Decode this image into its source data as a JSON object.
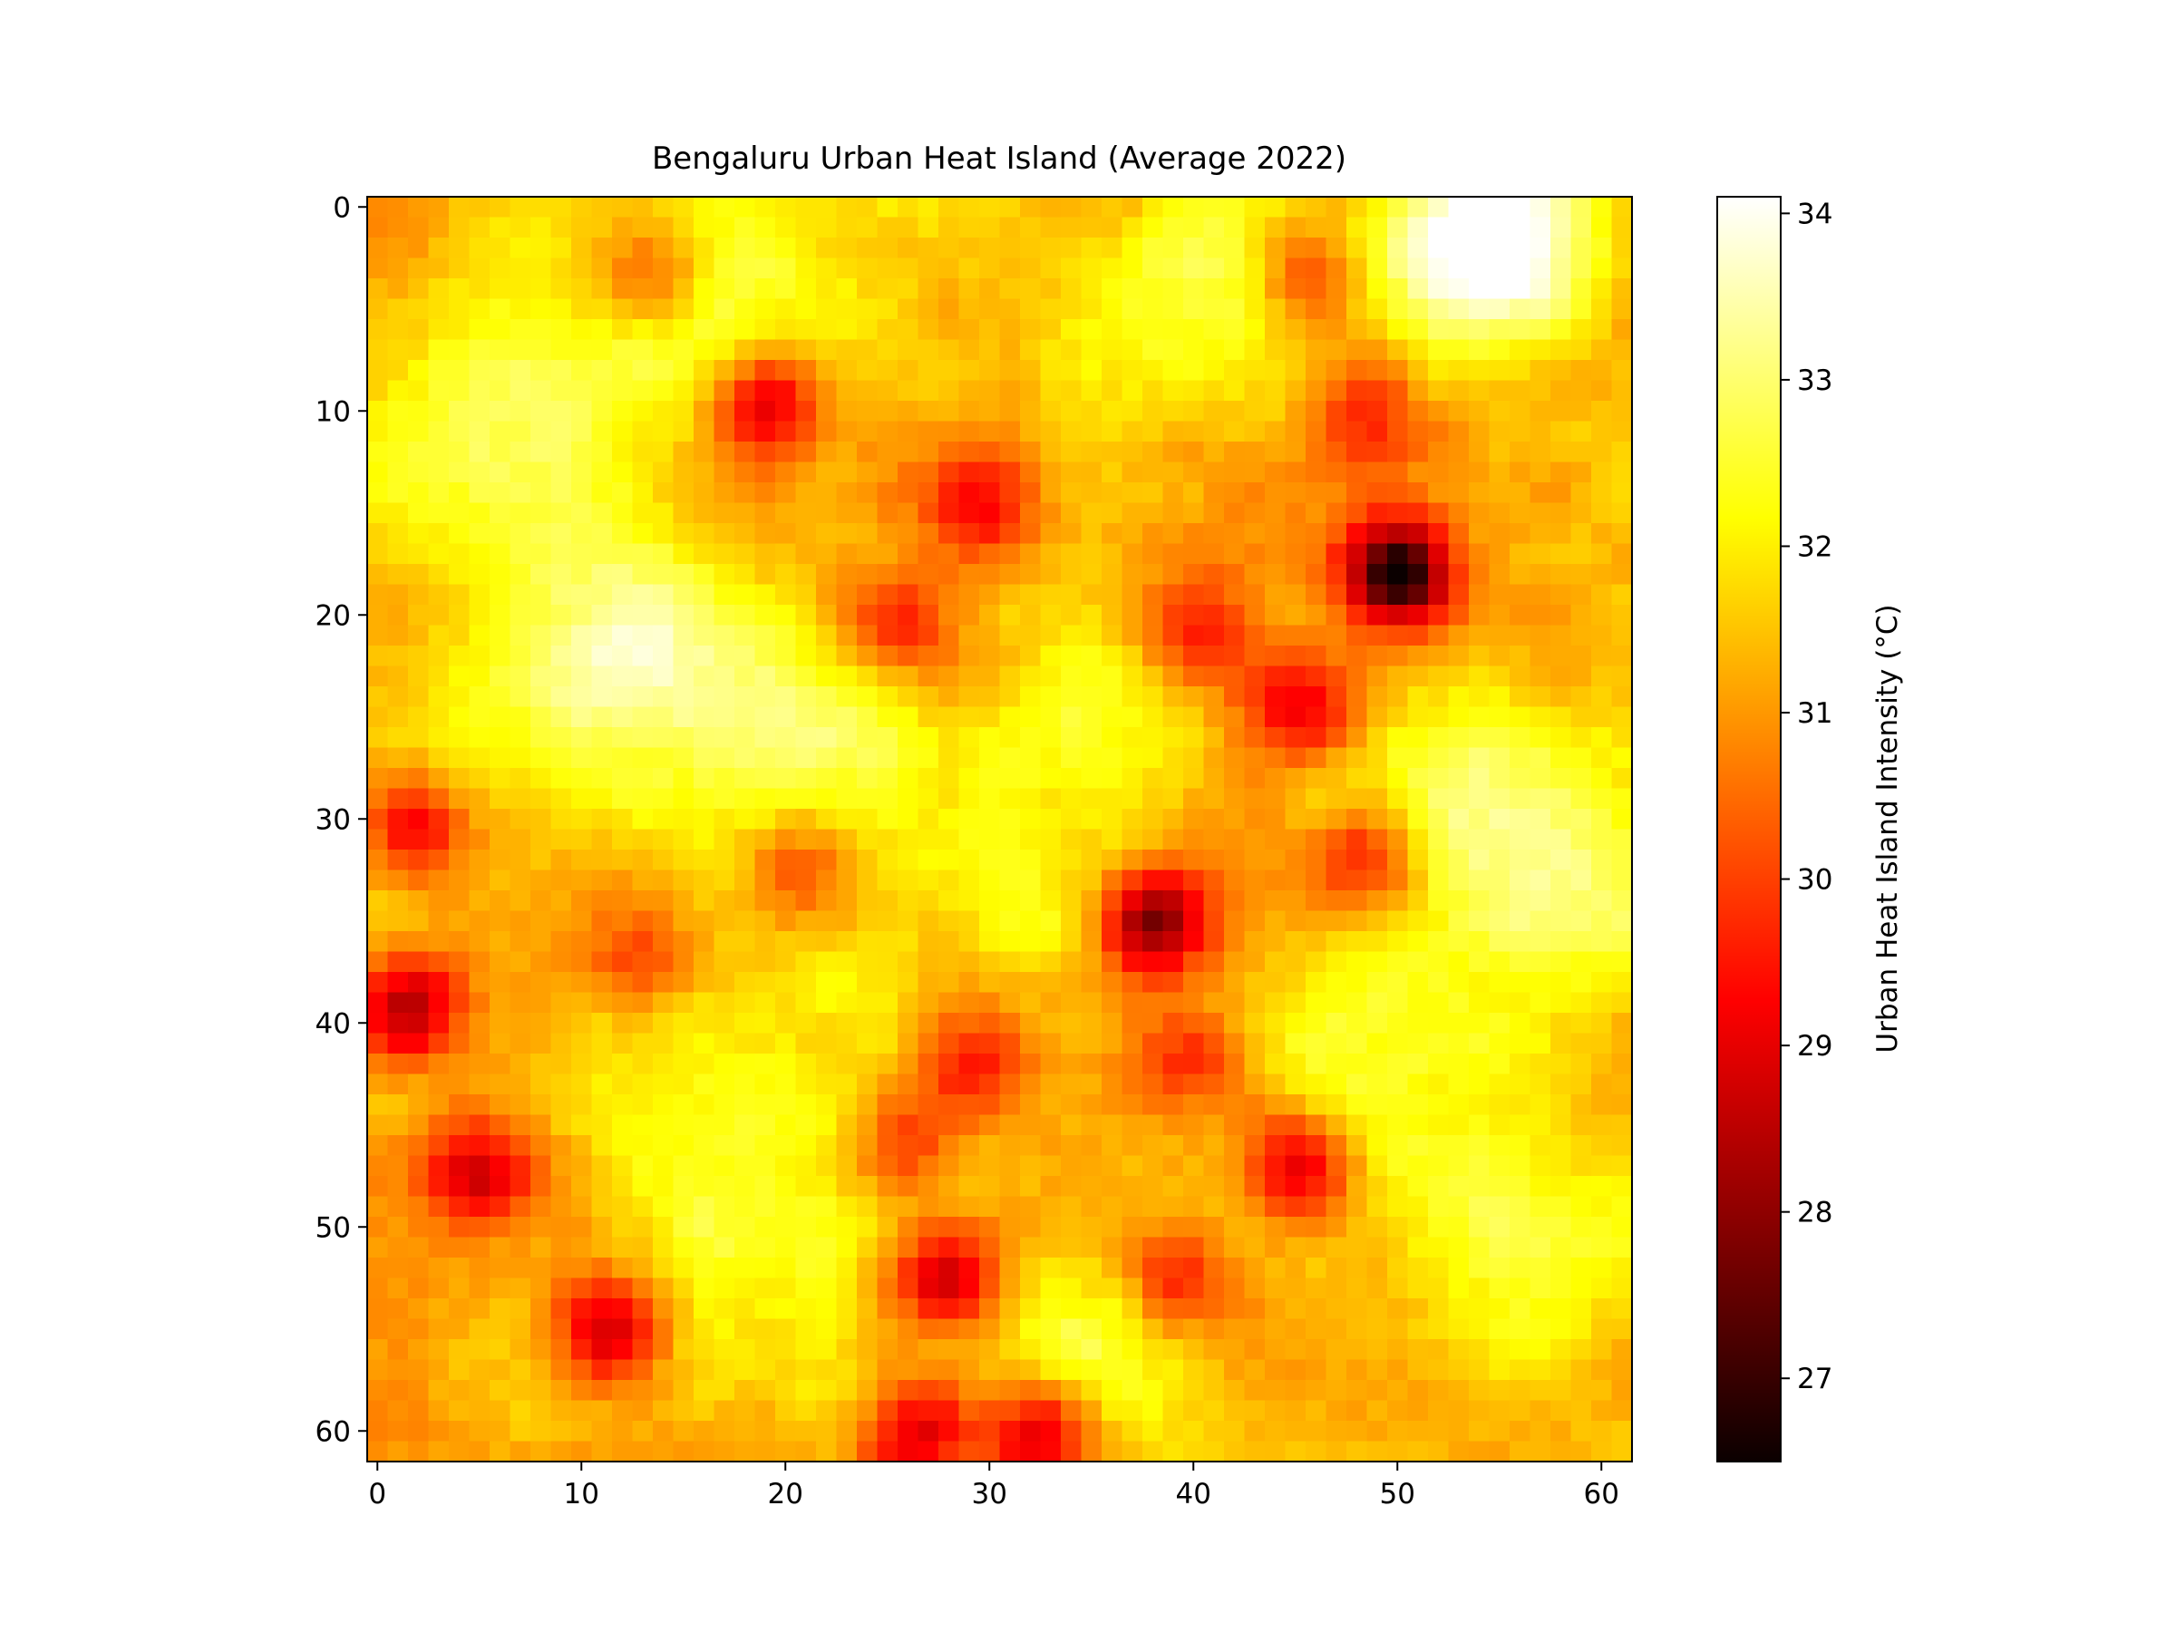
{
  "chart_data": {
    "type": "heatmap",
    "title": "Bengaluru Urban Heat Island (Average 2022)",
    "xlabel": "",
    "ylabel": "",
    "grid": false,
    "colormap": "hot",
    "x_ticks": [
      "0",
      "10",
      "20",
      "30",
      "40",
      "50",
      "60"
    ],
    "y_ticks": [
      "0",
      "10",
      "20",
      "30",
      "40",
      "50",
      "60"
    ],
    "xlim": [
      -0.5,
      61.5
    ],
    "ylim": [
      61.5,
      -0.5
    ],
    "colorbar": {
      "label": "Urban Heat Island Intensity (°C)",
      "range": [
        26.5,
        34.1
      ],
      "ticks": [
        "27",
        "28",
        "29",
        "30",
        "31",
        "32",
        "33",
        "34"
      ]
    },
    "grid_size": [
      62,
      62
    ],
    "hotspots_cold": [
      {
        "col": 50,
        "row": 18,
        "value": 26.5
      },
      {
        "col": 38,
        "row": 35,
        "value": 27.6
      },
      {
        "col": 1.5,
        "row": 39,
        "value": 28.2
      },
      {
        "col": 11.5,
        "row": 55,
        "value": 28.3
      },
      {
        "col": 28,
        "row": 52.5,
        "value": 28.4
      },
      {
        "col": 19,
        "row": 9.5,
        "value": 28.6
      },
      {
        "col": 32.5,
        "row": 60,
        "value": 28.7
      },
      {
        "col": 26.5,
        "row": 60,
        "value": 29.0
      },
      {
        "col": 5,
        "row": 47.5,
        "value": 29.1
      },
      {
        "col": 45,
        "row": 47,
        "value": 28.9
      },
      {
        "col": 45.5,
        "row": 24.5,
        "value": 29.2
      },
      {
        "col": 29.5,
        "row": 14.5,
        "value": 29.4
      },
      {
        "col": 48.5,
        "row": 32,
        "value": 29.3
      },
      {
        "col": 2,
        "row": 30.5,
        "value": 29.3
      },
      {
        "col": 39,
        "row": 52.5,
        "value": 29.3
      },
      {
        "col": 29.5,
        "row": 42,
        "value": 29.5
      },
      {
        "col": 13.5,
        "row": 3.5,
        "value": 29.6
      },
      {
        "col": 45.5,
        "row": 3.5,
        "value": 29.8
      },
      {
        "col": 25.5,
        "row": 20.5,
        "value": 29.7
      },
      {
        "col": 40,
        "row": 21,
        "value": 29.8
      },
      {
        "col": 48.5,
        "row": 10.5,
        "value": 29.9
      },
      {
        "col": 21,
        "row": 32.5,
        "value": 29.8
      },
      {
        "col": 13,
        "row": 36.5,
        "value": 30.0
      },
      {
        "col": 40,
        "row": 42,
        "value": 29.8
      },
      {
        "col": 26,
        "row": 46,
        "value": 29.9
      }
    ],
    "hotspots_warm": [
      {
        "col": 55,
        "row": 3,
        "value": 33.6
      },
      {
        "col": 53,
        "row": 1,
        "value": 33.4
      },
      {
        "col": 20.5,
        "row": 25.5,
        "value": 33.2
      },
      {
        "col": 13,
        "row": 21,
        "value": 33.0
      },
      {
        "col": 9,
        "row": 13,
        "value": 32.9
      },
      {
        "col": 54,
        "row": 28.5,
        "value": 33.0
      },
      {
        "col": 58,
        "row": 33,
        "value": 32.9
      },
      {
        "col": 41,
        "row": 4.5,
        "value": 33.0
      },
      {
        "col": 17,
        "row": 4.5,
        "value": 32.8
      },
      {
        "col": 36,
        "row": 25.5,
        "value": 32.6
      },
      {
        "col": 48,
        "row": 40,
        "value": 32.6
      },
      {
        "col": 52,
        "row": 48.5,
        "value": 32.6
      },
      {
        "col": 35,
        "row": 56,
        "value": 32.7
      },
      {
        "col": 3,
        "row": 12,
        "value": 32.4
      },
      {
        "col": 18,
        "row": 49,
        "value": 32.4
      },
      {
        "col": 58,
        "row": 52,
        "value": 32.5
      },
      {
        "col": 8,
        "row": 25,
        "value": 32.4
      },
      {
        "col": 32,
        "row": 34,
        "value": 32.2
      }
    ]
  }
}
